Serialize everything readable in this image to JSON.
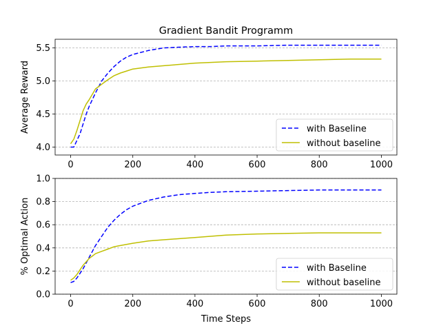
{
  "figure": {
    "title": "Gradient Bandit Programm",
    "xlabel": "Time Steps"
  },
  "chart_data": [
    {
      "type": "line",
      "ylabel": "Average Reward",
      "xlim": [
        -50,
        1050
      ],
      "ylim": [
        3.88,
        5.63
      ],
      "xticks": [
        0,
        200,
        400,
        600,
        800,
        1000
      ],
      "yticks": [
        4.0,
        4.5,
        5.0,
        5.5
      ],
      "ytick_labels": [
        "4.0",
        "4.5",
        "5.0",
        "5.5"
      ],
      "grid": "y-dashed",
      "legend": "lower-right",
      "x": [
        0,
        10,
        20,
        30,
        40,
        50,
        60,
        70,
        80,
        100,
        120,
        140,
        160,
        180,
        200,
        250,
        300,
        350,
        400,
        450,
        500,
        600,
        700,
        800,
        900,
        1000
      ],
      "series": [
        {
          "name": "with Baseline",
          "color": "#0000ff",
          "dash": "dashed",
          "values": [
            4.0,
            4.0,
            4.1,
            4.2,
            4.35,
            4.5,
            4.62,
            4.72,
            4.82,
            5.0,
            5.12,
            5.22,
            5.3,
            5.36,
            5.4,
            5.46,
            5.5,
            5.51,
            5.52,
            5.52,
            5.53,
            5.53,
            5.54,
            5.54,
            5.54,
            5.54
          ]
        },
        {
          "name": "without baseline",
          "color": "#bfbf00",
          "dash": "solid",
          "values": [
            4.05,
            4.12,
            4.25,
            4.4,
            4.55,
            4.65,
            4.72,
            4.8,
            4.88,
            4.95,
            5.02,
            5.08,
            5.12,
            5.15,
            5.18,
            5.21,
            5.23,
            5.25,
            5.27,
            5.28,
            5.29,
            5.3,
            5.31,
            5.32,
            5.33,
            5.33
          ]
        }
      ]
    },
    {
      "type": "line",
      "ylabel": "% Optimal Action",
      "xlim": [
        -50,
        1050
      ],
      "ylim": [
        0.0,
        1.0
      ],
      "xticks": [
        0,
        200,
        400,
        600,
        800,
        1000
      ],
      "yticks": [
        0.0,
        0.2,
        0.4,
        0.6,
        0.8,
        1.0
      ],
      "ytick_labels": [
        "0.0",
        "0.2",
        "0.4",
        "0.6",
        "0.8",
        "1.0"
      ],
      "grid": "y-dashed",
      "legend": "lower-right",
      "x": [
        0,
        10,
        20,
        30,
        40,
        50,
        60,
        70,
        80,
        100,
        120,
        140,
        160,
        180,
        200,
        250,
        300,
        350,
        400,
        450,
        500,
        600,
        700,
        800,
        900,
        1000
      ],
      "series": [
        {
          "name": "with Baseline",
          "color": "#0000ff",
          "dash": "dashed",
          "values": [
            0.1,
            0.11,
            0.14,
            0.18,
            0.22,
            0.27,
            0.32,
            0.37,
            0.42,
            0.5,
            0.58,
            0.64,
            0.69,
            0.73,
            0.76,
            0.81,
            0.84,
            0.86,
            0.87,
            0.88,
            0.885,
            0.89,
            0.895,
            0.9,
            0.9,
            0.9
          ]
        },
        {
          "name": "without baseline",
          "color": "#bfbf00",
          "dash": "solid",
          "values": [
            0.12,
            0.14,
            0.17,
            0.21,
            0.25,
            0.28,
            0.31,
            0.33,
            0.35,
            0.37,
            0.39,
            0.41,
            0.42,
            0.43,
            0.44,
            0.46,
            0.47,
            0.48,
            0.49,
            0.5,
            0.51,
            0.52,
            0.525,
            0.53,
            0.53,
            0.53
          ]
        }
      ]
    }
  ]
}
